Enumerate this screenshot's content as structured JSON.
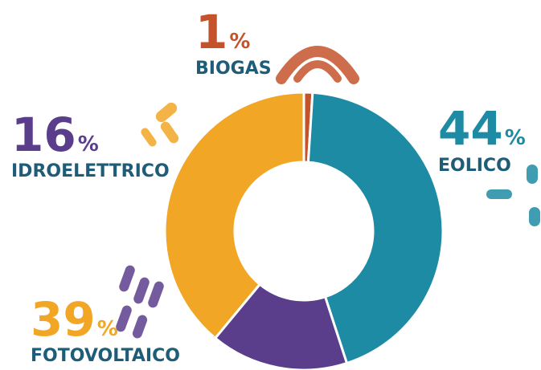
{
  "chart_data": {
    "type": "donut",
    "categories": [
      "BIOGAS",
      "EOLICO",
      "IDROELETTRICO",
      "FOTOVOLTAICO"
    ],
    "values": [
      1,
      44,
      16,
      39
    ],
    "unit": "%",
    "colors": [
      "#c4532b",
      "#1d8ba3",
      "#5a3e8c",
      "#f1a625"
    ]
  }
}
